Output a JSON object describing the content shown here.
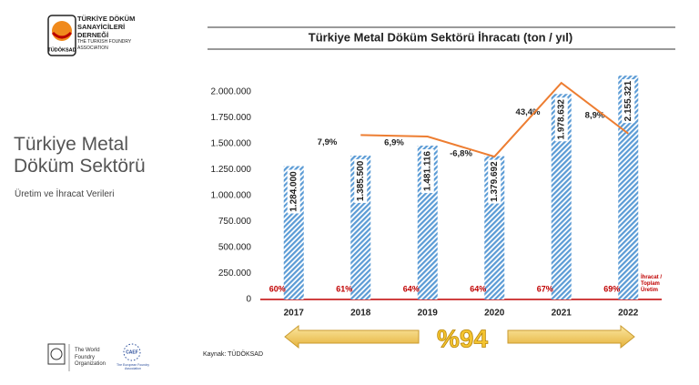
{
  "logo": {
    "lines": [
      "TÜRKİYE DÖKÜM",
      "SANAYİCİLERİ",
      "DERNEĞİ",
      "THE TURKISH FOUNDRY",
      "ASSOCIATION"
    ],
    "badge": "TÜDÖKSAD"
  },
  "slide": {
    "title_lines": [
      "Türkiye Metal",
      "Döküm Sektörü"
    ],
    "subtitle": "Üretim ve İhracat Verileri"
  },
  "footer": {
    "source": "Kaynak: TÜDÖKSAD",
    "wfo": [
      "The World",
      "Foundry",
      "Organization"
    ],
    "caef": "CAEF",
    "caef_sub": "The European Foundry Association"
  },
  "chart_data": {
    "type": "bar",
    "title": "Türkiye Metal Döküm Sektörü İhracatı (ton / yıl)",
    "categories": [
      "2017",
      "2018",
      "2019",
      "2020",
      "2021",
      "2022"
    ],
    "values": [
      1284000,
      1385500,
      1481116,
      1379692,
      1978632,
      2155321
    ],
    "value_labels": [
      "1.284.000",
      "1.385.500",
      "1.481.116",
      "1.379.692",
      "1.978.632",
      "2.155.321"
    ],
    "color": "#5b9bd5",
    "ylim": [
      0,
      2200000
    ],
    "yticks": [
      {
        "value": 0,
        "label": "0"
      },
      {
        "value": 250000,
        "label": "250.000"
      },
      {
        "value": 500000,
        "label": "500.000"
      },
      {
        "value": 750000,
        "label": "750.000"
      },
      {
        "value": 1000000,
        "label": "1.000.000"
      },
      {
        "value": 1250000,
        "label": "1.250.000"
      },
      {
        "value": 1500000,
        "label": "1.500.000"
      },
      {
        "value": 1750000,
        "label": "1.750.000"
      },
      {
        "value": 2000000,
        "label": "2.000.000"
      }
    ],
    "growth": {
      "values": [
        null,
        7.9,
        6.9,
        -6.8,
        43.4,
        8.9
      ],
      "value_labels": [
        null,
        "7,9%",
        "6,9%",
        "-6,8%",
        "43,4%",
        "8,9%"
      ],
      "color": "#ed7d31",
      "axis": "y2"
    },
    "y2lim": [
      -104,
      51.5
    ],
    "share": {
      "label": "İhracat / Toplam Üretim",
      "values": [
        60,
        61,
        64,
        64,
        67,
        69
      ],
      "value_labels": [
        "60%",
        "61%",
        "64%",
        "64%",
        "67%",
        "69%"
      ],
      "color": "#c00000"
    },
    "highlight": "%94"
  }
}
